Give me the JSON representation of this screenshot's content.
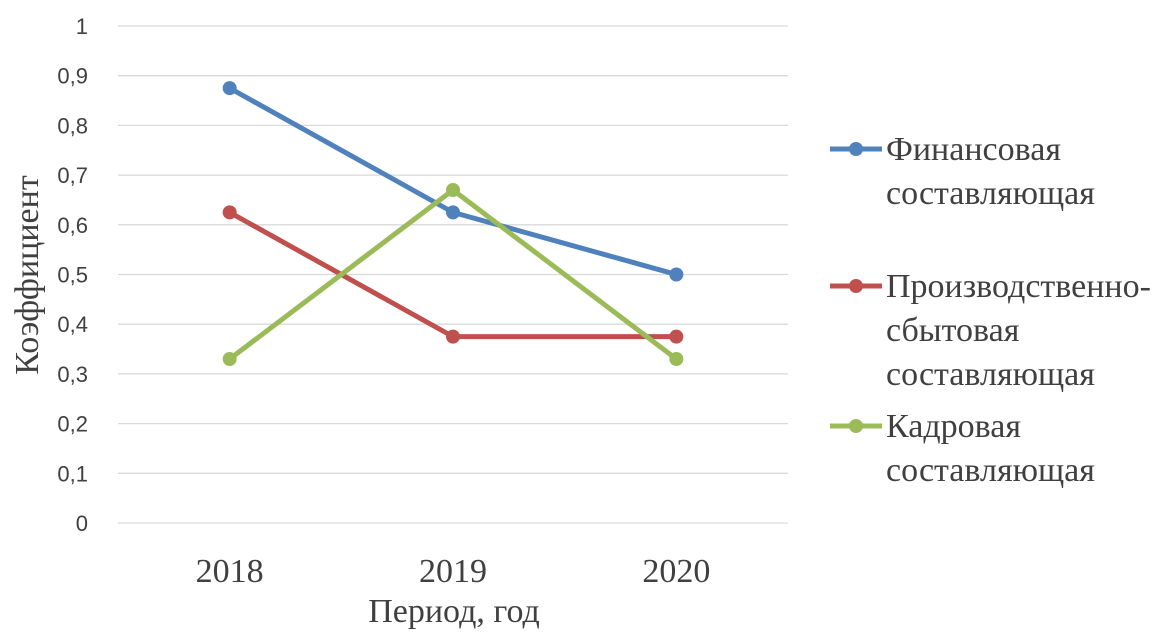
{
  "chart_data": {
    "type": "line",
    "title": "",
    "xlabel": "Период, год",
    "ylabel": "Коэффициент",
    "categories": [
      "2018",
      "2019",
      "2020"
    ],
    "ylim": [
      0,
      1
    ],
    "yticks": [
      0,
      0.1,
      0.2,
      0.3,
      0.4,
      0.5,
      0.6,
      0.7,
      0.8,
      0.9,
      1
    ],
    "ytick_labels": [
      "0",
      "0,1",
      "0,2",
      "0,3",
      "0,4",
      "0,5",
      "0,6",
      "0,7",
      "0,8",
      "0,9",
      "1"
    ],
    "grid": true,
    "legend_position": "right",
    "series": [
      {
        "name": "Финансовая составляющая",
        "name_lines": [
          "Финансовая",
          "составляющая"
        ],
        "color": "#4f81bd",
        "values": [
          0.875,
          0.625,
          0.5
        ]
      },
      {
        "name": "Производственно-сбытовая составляющая",
        "name_lines": [
          "Производственно-",
          "сбытовая",
          "составляющая"
        ],
        "color": "#c0504d",
        "values": [
          0.625,
          0.375,
          0.375
        ]
      },
      {
        "name": "Кадровая составляющая",
        "name_lines": [
          "Кадровая",
          "составляющая"
        ],
        "color": "#9bbb59",
        "values": [
          0.33,
          0.67,
          0.33
        ]
      }
    ]
  }
}
